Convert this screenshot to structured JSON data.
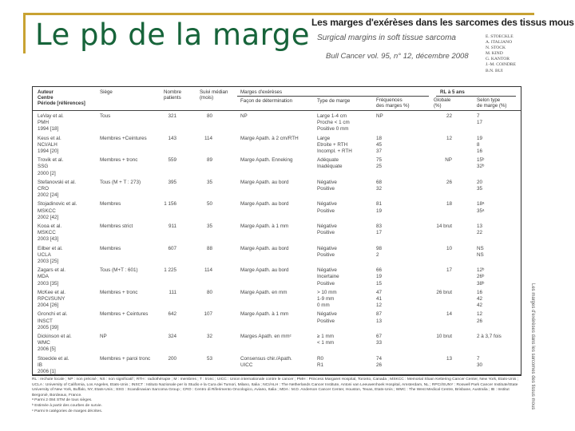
{
  "slide": {
    "title": "Le pb de la marge"
  },
  "article": {
    "title": "Les marges d'exérèses dans les sarcomes des tissus mous",
    "subtitle": "Surgical margins in soft tissue sarcoma",
    "reference": "Bull Cancer vol. 95, n° 12, décembre 2008",
    "authors": [
      "E. Stoeckle",
      "A. Italiano",
      "N. Stock",
      "M. Kind",
      "G. Kantor",
      "J.-M. Coindre",
      "B.N. Bui"
    ],
    "side_text": "Les marges d'exérèses dans les sarcomes des tissus mous"
  },
  "colors": {
    "title": "#17643a",
    "accent": "#c8a232"
  },
  "table": {
    "headers": {
      "author": "Auteur\nCentre\nPériode [références]",
      "siege": "Siège",
      "nombre": "Nombre\npatients",
      "suivi": "Suivi médian\n(mois)",
      "marges": "Marges d'exérèses",
      "facon": "Façon de détermination",
      "type": "Type de marge",
      "freq": "Fréquences\ndes marges %)",
      "rl": "RL à 5 ans",
      "globale": "Globale\n(%)",
      "selon": "Selon type\nde marge (%)"
    },
    "studies": [
      {
        "author": "LeVay et al.\nPMH\n1994 [18]",
        "siege": "Tous",
        "nombre": "321",
        "suivi": "80",
        "facon": "NP",
        "globale": "22",
        "types": [
          {
            "type": "Large 1-4 cm",
            "freq": "NP",
            "selon": "7"
          },
          {
            "type": "Proche < 1 cm",
            "freq": "",
            "selon": "17"
          },
          {
            "type": "Positive 0 mm",
            "freq": "",
            "selon": ""
          }
        ]
      },
      {
        "author": "Keus et al.\nNCI/ALH\n1994 [20]",
        "siege": "Membres +Ceintures",
        "nombre": "143",
        "suivi": "114",
        "facon": "Marge Apath. à 2 cm/RTH",
        "globale": "12",
        "types": [
          {
            "type": "Large",
            "freq": "18",
            "selon": "19"
          },
          {
            "type": "Etroite + RTH",
            "freq": "45",
            "selon": "8"
          },
          {
            "type": "Incompl. + RTH",
            "freq": "37",
            "selon": "16"
          }
        ]
      },
      {
        "author": "Trovik et al.\nSSG\n2000 [2]",
        "siege": "Membres + tronc",
        "nombre": "559",
        "suivi": "89",
        "facon": "Marge Apath. Enneking",
        "globale": "NP",
        "types": [
          {
            "type": "Adéquate",
            "freq": "75",
            "selon": "15ᵇ"
          },
          {
            "type": "Inadéquate",
            "freq": "25",
            "selon": "32ᵇ"
          }
        ]
      },
      {
        "author": "Stefanovski et al.\nCRO\n2002 [24]",
        "siege": "Tous (M + T : 273)",
        "nombre": "395",
        "suivi": "35",
        "facon": "Marge Apath. au bord",
        "globale": "26",
        "types": [
          {
            "type": "Négative",
            "freq": "68",
            "selon": "20"
          },
          {
            "type": "Positive",
            "freq": "32",
            "selon": "35"
          }
        ]
      },
      {
        "author": "Stojadinovic et al.\nMSKCC\n2002 [42]",
        "siege": "Membres",
        "nombre": "1 156",
        "suivi": "50",
        "facon": "Marge Apath. au bord",
        "globale": "18",
        "types": [
          {
            "type": "Négative",
            "freq": "81",
            "selon": "18ᵃ"
          },
          {
            "type": "Positive",
            "freq": "19",
            "selon": "35ᵃ"
          }
        ]
      },
      {
        "author": "Kooa et al.\nMSKCC\n2003 [43]",
        "siege": "Membres strict",
        "nombre": "911",
        "suivi": "35",
        "facon": "Marge Apath. à 1 mm",
        "globale": "14 brut",
        "types": [
          {
            "type": "Négative",
            "freq": "83",
            "selon": "13"
          },
          {
            "type": "Positive",
            "freq": "17",
            "selon": "22"
          }
        ]
      },
      {
        "author": "Eilber et al.\nUCLA\n2003 [25]",
        "siege": "Membres",
        "nombre": "607",
        "suivi": "88",
        "facon": "Marge Apath. au bord",
        "globale": "10",
        "types": [
          {
            "type": "Négative",
            "freq": "98",
            "selon": "NS"
          },
          {
            "type": "Positive",
            "freq": "2",
            "selon": "NS"
          }
        ]
      },
      {
        "author": "Zagars et al.\nMDA\n2003 [35]",
        "siege": "Tous (M+T : 601)",
        "nombre": "1 225",
        "suivi": "114",
        "facon": "Marge Apath. au bord",
        "globale": "17",
        "types": [
          {
            "type": "Négative",
            "freq": "66",
            "selon": "12ᵇ"
          },
          {
            "type": "Incertaine",
            "freq": "19",
            "selon": "26ᵇ"
          },
          {
            "type": "Positive",
            "freq": "15",
            "selon": "38ᵇ"
          }
        ]
      },
      {
        "author": "McKee et al.\nRPCI/SUNY\n2004 [26]",
        "siege": "Membres + tronc",
        "nombre": "111",
        "suivi": "80",
        "facon": "Marge Apath. en mm",
        "globale": "26 brut",
        "types": [
          {
            "type": "> 10 mm",
            "freq": "47",
            "selon": "16"
          },
          {
            "type": "1-9 mm",
            "freq": "41",
            "selon": "42"
          },
          {
            "type": "0 mm",
            "freq": "12",
            "selon": "42"
          }
        ]
      },
      {
        "author": "Gronchi et al.\nINSCT\n2005 [39]",
        "siege": "Membres + Ceintures",
        "nombre": "642",
        "suivi": "107",
        "facon": "Marge Apath. à 1 mm",
        "globale": "14",
        "types": [
          {
            "type": "Négative",
            "freq": "87",
            "selon": "12"
          },
          {
            "type": "Positive",
            "freq": "13",
            "selon": "26"
          }
        ]
      },
      {
        "author": "Dickinson et al.\nWMC\n2006 [5]",
        "siege": "NP",
        "nombre": "324",
        "suivi": "32",
        "facon": "Marges Apath. en mmᶜ",
        "globale": "10 brut",
        "types": [
          {
            "type": "≥ 1 mm",
            "freq": "67",
            "selon": "2 à 3,7 fois"
          },
          {
            "type": "< 1 mm",
            "freq": "33",
            "selon": ""
          }
        ]
      },
      {
        "author": "Stoeckle et al.\nIB\n2006 [1]",
        "siege": "Membres + paroi tronc",
        "nombre": "200",
        "suivi": "53",
        "facon": "Consensus chir./Apath.\nUICC",
        "globale": "13",
        "types": [
          {
            "type": "R0",
            "freq": "74",
            "selon": "7"
          },
          {
            "type": "R1",
            "freq": "26",
            "selon": "30"
          }
        ]
      }
    ]
  },
  "footnotes": {
    "abbreviations": "RL : rechute locale ; NP : non précisé ; NS : non significatif ; RTH : radiothérapie ; M : membres ; T : tronc ; UICC : Union internationale contre le cancer ; PMH : Princess Margaret Hospital, Toronto, Canada ; MSKCC : Memorial Sloan Kettering Cancer Center, New York, Etats-Unis ; UCLA : University of California, Los Angeles, Etats-Unis ; INSCT : Istituto Nazionale per lo Studio e la Cura dei Tumori, Milano, Italia ; NCI/ALH : The Netherlands Cancer Institute, Antoni van Leeuwenhoek Hospital, Amsterdam, NL ; RPCI/SUNY : Roswell Park Cancer Institute/State University of New York, Buffalo, NY, Etats-Unis ; SSG : Scandinavian Sarcoma Group ; CRO : Centro di Riferimento Oncologico, Aviano, Italia ; MDA : M.D. Anderson Cancer Center, Houston, Texas, Etats-Unis ; WMC : The West Medical Centre, Brisbane, Australia ; IB : Institut Bergonié, Bordeaux, France.",
    "notes": [
      "ᵃ Parmi 2 084 STM de tous sièges.",
      "ᵇ Estimée à partir des courbes de survie.",
      "ᶜ Parmi 9 catégories de marges décrites."
    ]
  }
}
